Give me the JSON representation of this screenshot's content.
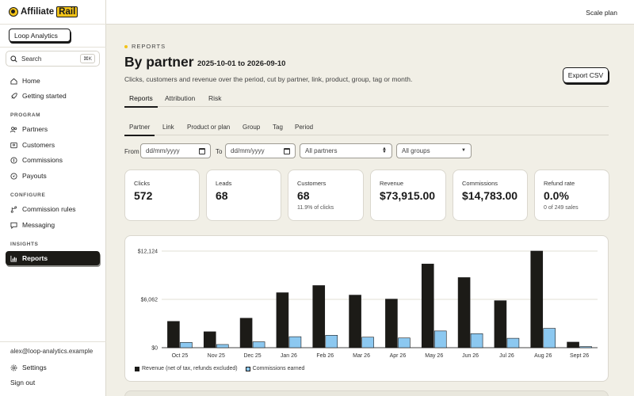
{
  "app": {
    "logo_text": "Affiliate",
    "logo_accent": "Rail",
    "workspace": "Loop Analytics",
    "plan": "Scale plan"
  },
  "search": {
    "label": "Search",
    "shortcut": "⌘K"
  },
  "nav": {
    "home": "Home",
    "getting_started": "Getting started",
    "program_heading": "PROGRAM",
    "partners": "Partners",
    "customers": "Customers",
    "commissions": "Commissions",
    "payouts": "Payouts",
    "configure_heading": "CONFIGURE",
    "commission_rules": "Commission rules",
    "messaging": "Messaging",
    "insights_heading": "INSIGHTS",
    "reports": "Reports"
  },
  "account": {
    "email": "alex@loop-analytics.example",
    "settings": "Settings",
    "sign_out": "Sign out"
  },
  "page": {
    "eyebrow": "REPORTS",
    "title": "By partner",
    "daterange": "2025-10-01 to 2026-09-10",
    "subtitle": "Clicks, customers and revenue over the period, cut by partner, link, product, group, tag or month.",
    "export_label": "Export CSV"
  },
  "tabs": [
    "Reports",
    "Attribution",
    "Risk"
  ],
  "subtabs": [
    "Partner",
    "Link",
    "Product or plan",
    "Group",
    "Tag",
    "Period"
  ],
  "filters": {
    "from_label": "From",
    "to_label": "To",
    "from_placeholder": "dd/mm/yyyy",
    "to_placeholder": "dd/mm/yyyy",
    "partner_select": "All partners",
    "group_select": "All groups"
  },
  "stats": [
    {
      "label": "Clicks",
      "value": "572",
      "sub": ""
    },
    {
      "label": "Leads",
      "value": "68",
      "sub": ""
    },
    {
      "label": "Customers",
      "value": "68",
      "sub": "11.9% of clicks"
    },
    {
      "label": "Revenue",
      "value": "$73,915.00",
      "sub": ""
    },
    {
      "label": "Commissions",
      "value": "$14,783.00",
      "sub": ""
    },
    {
      "label": "Refund rate",
      "value": "0.0%",
      "sub": "0 of 249 sales"
    }
  ],
  "chart_data": {
    "type": "bar",
    "categories": [
      "Oct 25",
      "Nov 25",
      "Dec 25",
      "Jan 26",
      "Feb 26",
      "Mar 26",
      "Apr 26",
      "May 26",
      "Jun 26",
      "Jul 26",
      "Aug 26",
      "Sept 26"
    ],
    "series": [
      {
        "name": "Revenue (net of tax, refunds excluded)",
        "color": "#1c1b17",
        "values": [
          3300,
          2000,
          3700,
          6900,
          7800,
          6600,
          6100,
          10500,
          8800,
          5900,
          12124,
          700
        ]
      },
      {
        "name": "Commissions earned",
        "color": "#8cc8f0",
        "values": [
          660,
          400,
          740,
          1380,
          1560,
          1320,
          1220,
          2100,
          1760,
          1180,
          2425,
          140
        ]
      }
    ],
    "y_ticks": [
      "$12,124",
      "$6,062",
      "$0"
    ],
    "ylim": [
      0,
      12124
    ],
    "grid": true,
    "legend": "bottom-left"
  }
}
